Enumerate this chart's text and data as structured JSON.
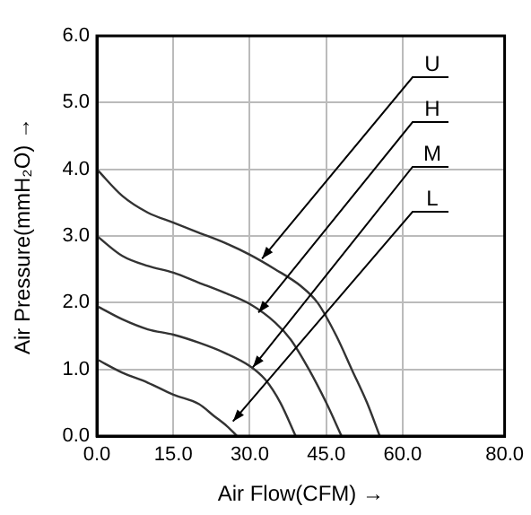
{
  "chart_data": {
    "type": "line",
    "xlabel": "Air Flow(CFM) →",
    "ylabel": "Air Pressure(mmH₂O) →",
    "xlim": [
      0,
      80
    ],
    "xticks": [
      {
        "value": 0,
        "label": "0.0"
      },
      {
        "value": 15,
        "label": "15.0"
      },
      {
        "value": 30,
        "label": "30.0"
      },
      {
        "value": 45,
        "label": "45.0"
      },
      {
        "value": 60,
        "label": "60.0"
      },
      {
        "value": 80,
        "label": "80.0"
      }
    ],
    "ylim": [
      0,
      6
    ],
    "yticks": [
      {
        "value": 0,
        "label": "0.0"
      },
      {
        "value": 1,
        "label": "1.0"
      },
      {
        "value": 2,
        "label": "2.0"
      },
      {
        "value": 3,
        "label": "3.0"
      },
      {
        "value": 4,
        "label": "4.0"
      },
      {
        "value": 5,
        "label": "5.0"
      },
      {
        "value": 6,
        "label": "6.0"
      }
    ],
    "grid": true,
    "legend": false,
    "marker": "none",
    "line_style": "solid",
    "series": [
      {
        "color": "#333333",
        "x": [
          0,
          5,
          10,
          15,
          20,
          25,
          30,
          35,
          40,
          43.3,
          47,
          50,
          53,
          55.5
        ],
        "values": [
          4.0,
          3.6,
          3.35,
          3.2,
          3.05,
          2.9,
          2.72,
          2.5,
          2.25,
          2.0,
          1.5,
          1.0,
          0.5,
          0
        ]
      },
      {
        "color": "#333333",
        "x": [
          0,
          5,
          10,
          15,
          20,
          25,
          30,
          35,
          38,
          41.6,
          45,
          48
        ],
        "values": [
          3.0,
          2.7,
          2.55,
          2.45,
          2.3,
          2.15,
          1.98,
          1.7,
          1.45,
          1.0,
          0.5,
          0
        ]
      },
      {
        "color": "#333333",
        "x": [
          0,
          5,
          10,
          15,
          20,
          25,
          30,
          33,
          36,
          39
        ],
        "values": [
          1.95,
          1.75,
          1.6,
          1.52,
          1.4,
          1.25,
          1.05,
          0.85,
          0.5,
          0
        ]
      },
      {
        "color": "#333333",
        "x": [
          0,
          5,
          10,
          15,
          20,
          23,
          25.5,
          27.5
        ],
        "values": [
          1.15,
          0.95,
          0.8,
          0.62,
          0.48,
          0.3,
          0.15,
          0
        ]
      }
    ],
    "annotations": [
      {
        "text": "U",
        "x": 32.4,
        "y": 2.66
      },
      {
        "text": "H",
        "x": 31.7,
        "y": 1.85
      },
      {
        "text": "M",
        "x": 30.6,
        "y": 1.03
      },
      {
        "text": "L",
        "x": 26.7,
        "y": 0.22
      }
    ]
  }
}
